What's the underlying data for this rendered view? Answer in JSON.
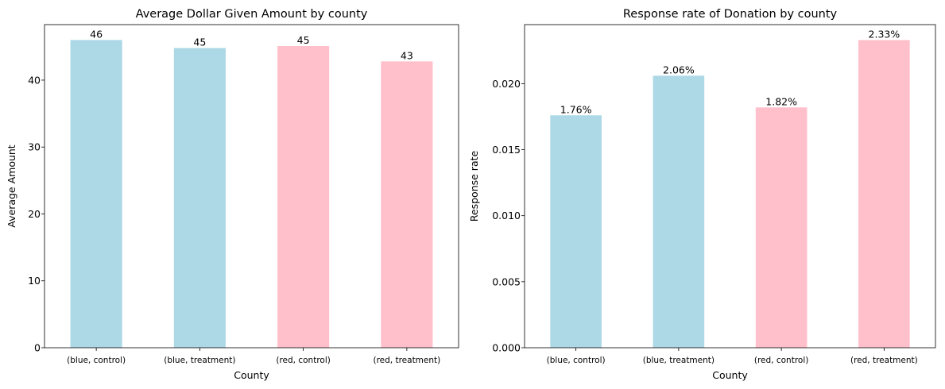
{
  "chart_data": [
    {
      "type": "bar",
      "title": "Average Dollar Given Amount by county",
      "xlabel": "County",
      "ylabel": "Average Amount",
      "categories": [
        "(blue, control)",
        "(blue, treatment)",
        "(red, control)",
        "(red, treatment)"
      ],
      "values": [
        46.0,
        44.8,
        45.1,
        42.8
      ],
      "data_labels": [
        "46",
        "45",
        "45",
        "43"
      ],
      "colors": [
        "#add8e6",
        "#add8e6",
        "#ffc0cb",
        "#ffc0cb"
      ],
      "ylim": [
        0,
        48.3
      ],
      "yticks": [
        0,
        10,
        20,
        30,
        40
      ],
      "ytick_labels": [
        "0",
        "10",
        "20",
        "30",
        "40"
      ],
      "grid": false
    },
    {
      "type": "bar",
      "title": "Response rate of Donation by county",
      "xlabel": "County",
      "ylabel": "Response rate",
      "categories": [
        "(blue, control)",
        "(blue, treatment)",
        "(red, control)",
        "(red, treatment)"
      ],
      "values": [
        0.0176,
        0.0206,
        0.0182,
        0.0233
      ],
      "data_labels": [
        "1.76%",
        "2.06%",
        "1.82%",
        "2.33%"
      ],
      "colors": [
        "#add8e6",
        "#add8e6",
        "#ffc0cb",
        "#ffc0cb"
      ],
      "ylim": [
        0,
        0.02447
      ],
      "yticks": [
        0,
        0.005,
        0.01,
        0.015,
        0.02
      ],
      "ytick_labels": [
        "0.000",
        "0.005",
        "0.010",
        "0.015",
        "0.020"
      ],
      "grid": false
    }
  ]
}
